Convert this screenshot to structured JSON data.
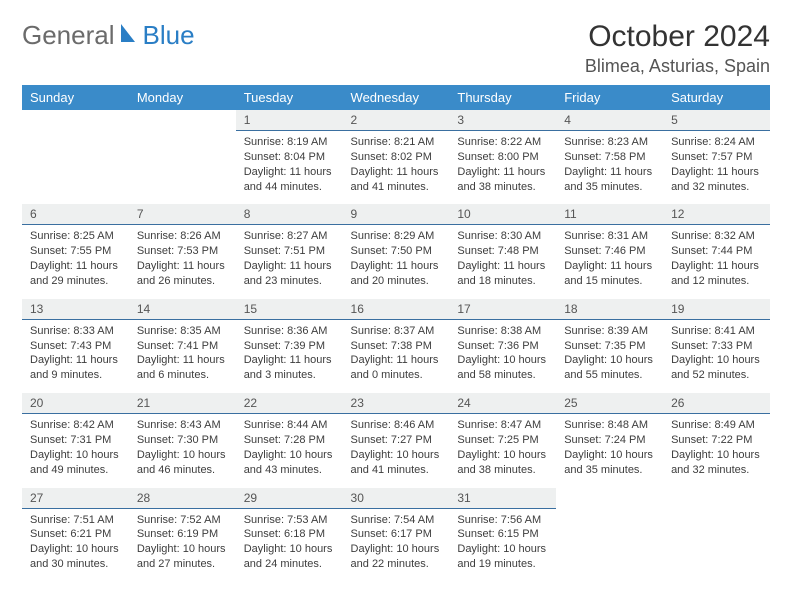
{
  "brand": {
    "part1": "General",
    "part2": "Blue"
  },
  "title": "October 2024",
  "location": "Blimea, Asturias, Spain",
  "headerColor": "#3a8bc9",
  "numRowBg": "#eef0f0",
  "borderColor": "#3a6fa0",
  "dayNames": [
    "Sunday",
    "Monday",
    "Tuesday",
    "Wednesday",
    "Thursday",
    "Friday",
    "Saturday"
  ],
  "weeks": [
    {
      "nums": [
        "",
        "",
        "1",
        "2",
        "3",
        "4",
        "5"
      ],
      "cells": [
        null,
        null,
        {
          "sunrise": "8:19 AM",
          "sunset": "8:04 PM",
          "daylight": "11 hours and 44 minutes."
        },
        {
          "sunrise": "8:21 AM",
          "sunset": "8:02 PM",
          "daylight": "11 hours and 41 minutes."
        },
        {
          "sunrise": "8:22 AM",
          "sunset": "8:00 PM",
          "daylight": "11 hours and 38 minutes."
        },
        {
          "sunrise": "8:23 AM",
          "sunset": "7:58 PM",
          "daylight": "11 hours and 35 minutes."
        },
        {
          "sunrise": "8:24 AM",
          "sunset": "7:57 PM",
          "daylight": "11 hours and 32 minutes."
        }
      ]
    },
    {
      "nums": [
        "6",
        "7",
        "8",
        "9",
        "10",
        "11",
        "12"
      ],
      "cells": [
        {
          "sunrise": "8:25 AM",
          "sunset": "7:55 PM",
          "daylight": "11 hours and 29 minutes."
        },
        {
          "sunrise": "8:26 AM",
          "sunset": "7:53 PM",
          "daylight": "11 hours and 26 minutes."
        },
        {
          "sunrise": "8:27 AM",
          "sunset": "7:51 PM",
          "daylight": "11 hours and 23 minutes."
        },
        {
          "sunrise": "8:29 AM",
          "sunset": "7:50 PM",
          "daylight": "11 hours and 20 minutes."
        },
        {
          "sunrise": "8:30 AM",
          "sunset": "7:48 PM",
          "daylight": "11 hours and 18 minutes."
        },
        {
          "sunrise": "8:31 AM",
          "sunset": "7:46 PM",
          "daylight": "11 hours and 15 minutes."
        },
        {
          "sunrise": "8:32 AM",
          "sunset": "7:44 PM",
          "daylight": "11 hours and 12 minutes."
        }
      ]
    },
    {
      "nums": [
        "13",
        "14",
        "15",
        "16",
        "17",
        "18",
        "19"
      ],
      "cells": [
        {
          "sunrise": "8:33 AM",
          "sunset": "7:43 PM",
          "daylight": "11 hours and 9 minutes."
        },
        {
          "sunrise": "8:35 AM",
          "sunset": "7:41 PM",
          "daylight": "11 hours and 6 minutes."
        },
        {
          "sunrise": "8:36 AM",
          "sunset": "7:39 PM",
          "daylight": "11 hours and 3 minutes."
        },
        {
          "sunrise": "8:37 AM",
          "sunset": "7:38 PM",
          "daylight": "11 hours and 0 minutes."
        },
        {
          "sunrise": "8:38 AM",
          "sunset": "7:36 PM",
          "daylight": "10 hours and 58 minutes."
        },
        {
          "sunrise": "8:39 AM",
          "sunset": "7:35 PM",
          "daylight": "10 hours and 55 minutes."
        },
        {
          "sunrise": "8:41 AM",
          "sunset": "7:33 PM",
          "daylight": "10 hours and 52 minutes."
        }
      ]
    },
    {
      "nums": [
        "20",
        "21",
        "22",
        "23",
        "24",
        "25",
        "26"
      ],
      "cells": [
        {
          "sunrise": "8:42 AM",
          "sunset": "7:31 PM",
          "daylight": "10 hours and 49 minutes."
        },
        {
          "sunrise": "8:43 AM",
          "sunset": "7:30 PM",
          "daylight": "10 hours and 46 minutes."
        },
        {
          "sunrise": "8:44 AM",
          "sunset": "7:28 PM",
          "daylight": "10 hours and 43 minutes."
        },
        {
          "sunrise": "8:46 AM",
          "sunset": "7:27 PM",
          "daylight": "10 hours and 41 minutes."
        },
        {
          "sunrise": "8:47 AM",
          "sunset": "7:25 PM",
          "daylight": "10 hours and 38 minutes."
        },
        {
          "sunrise": "8:48 AM",
          "sunset": "7:24 PM",
          "daylight": "10 hours and 35 minutes."
        },
        {
          "sunrise": "8:49 AM",
          "sunset": "7:22 PM",
          "daylight": "10 hours and 32 minutes."
        }
      ]
    },
    {
      "nums": [
        "27",
        "28",
        "29",
        "30",
        "31",
        "",
        ""
      ],
      "cells": [
        {
          "sunrise": "7:51 AM",
          "sunset": "6:21 PM",
          "daylight": "10 hours and 30 minutes."
        },
        {
          "sunrise": "7:52 AM",
          "sunset": "6:19 PM",
          "daylight": "10 hours and 27 minutes."
        },
        {
          "sunrise": "7:53 AM",
          "sunset": "6:18 PM",
          "daylight": "10 hours and 24 minutes."
        },
        {
          "sunrise": "7:54 AM",
          "sunset": "6:17 PM",
          "daylight": "10 hours and 22 minutes."
        },
        {
          "sunrise": "7:56 AM",
          "sunset": "6:15 PM",
          "daylight": "10 hours and 19 minutes."
        },
        null,
        null
      ]
    }
  ]
}
